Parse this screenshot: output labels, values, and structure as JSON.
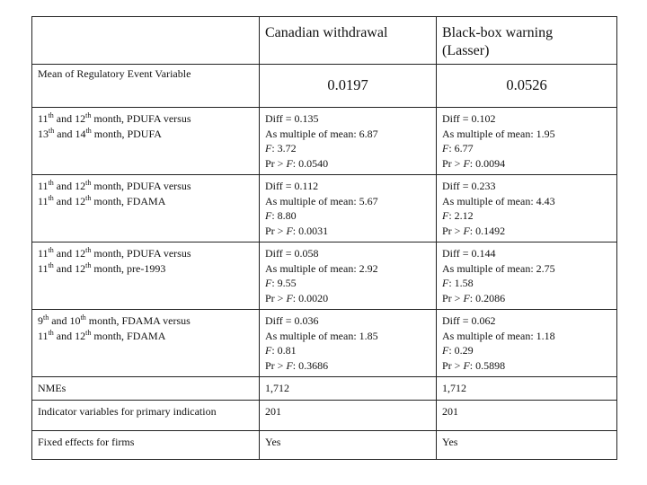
{
  "header": {
    "col1": "",
    "col2": "Canadian withdrawal",
    "col3_line1": "Black-box warning",
    "col3_line2": "(Lasser)"
  },
  "mean_row": {
    "label": "Mean of Regulatory Event Variable",
    "col2": "0.0197",
    "col3": "0.0526"
  },
  "comparison_rows": [
    {
      "label": {
        "a_num": "11",
        "a_sup": "th",
        "a_mid": " and 12",
        "a_sup2": "th",
        "a_rest": " month, PDUFA versus",
        "b_num": "13",
        "b_sup": "th",
        "b_mid": " and 14",
        "b_sup2": "th",
        "b_rest": " month, PDUFA"
      },
      "canadian": {
        "diff": "Diff = 0.135",
        "multiple": "As multiple of mean: 6.87",
        "f_label": "F",
        "f": ": 3.72",
        "pr_pre": "Pr > ",
        "pr_f": "F",
        "pr": ": 0.0540"
      },
      "blackbox": {
        "diff": "Diff = 0.102",
        "multiple": "As multiple of mean: 1.95",
        "f_label": "F",
        "f": ": 6.77",
        "pr_pre": "Pr > ",
        "pr_f": "F",
        "pr": ": 0.0094"
      }
    },
    {
      "label": {
        "a_num": "11",
        "a_sup": "th",
        "a_mid": " and 12",
        "a_sup2": "th",
        "a_rest": " month, PDUFA versus",
        "b_num": "11",
        "b_sup": "th",
        "b_mid": " and 12",
        "b_sup2": "th",
        "b_rest": " month, FDAMA"
      },
      "canadian": {
        "diff": "Diff = 0.112",
        "multiple": "As multiple of mean: 5.67",
        "f_label": "F",
        "f": ": 8.80",
        "pr_pre": "Pr > ",
        "pr_f": "F",
        "pr": ": 0.0031"
      },
      "blackbox": {
        "diff": "Diff = 0.233",
        "multiple": "As multiple of mean: 4.43",
        "f_label": "F",
        "f": ": 2.12",
        "pr_pre": "Pr > ",
        "pr_f": "F",
        "pr": ": 0.1492"
      }
    },
    {
      "label": {
        "a_num": "11",
        "a_sup": "th",
        "a_mid": " and 12",
        "a_sup2": "th",
        "a_rest": " month, PDUFA versus",
        "b_num": "11",
        "b_sup": "th",
        "b_mid": " and 12",
        "b_sup2": "th",
        "b_rest": " month, pre-1993"
      },
      "canadian": {
        "diff": "Diff = 0.058",
        "multiple": "As multiple of mean: 2.92",
        "f_label": "F",
        "f": ": 9.55",
        "pr_pre": "Pr > ",
        "pr_f": "F",
        "pr": ": 0.0020"
      },
      "blackbox": {
        "diff": "Diff = 0.144",
        "multiple": "As multiple of mean: 2.75",
        "f_label": "F",
        "f": ": 1.58",
        "pr_pre": "Pr > ",
        "pr_f": "F",
        "pr": ": 0.2086"
      }
    },
    {
      "label": {
        "a_num": "9",
        "a_sup": "th",
        "a_mid": " and 10",
        "a_sup2": "th",
        "a_rest": " month, FDAMA versus",
        "b_num": "11",
        "b_sup": "th",
        "b_mid": " and 12",
        "b_sup2": "th",
        "b_rest": " month, FDAMA"
      },
      "canadian": {
        "diff": "Diff = 0.036",
        "multiple": "As multiple of mean: 1.85",
        "f_label": "F",
        "f": ": 0.81",
        "pr_pre": "Pr > ",
        "pr_f": "F",
        "pr": ": 0.3686"
      },
      "blackbox": {
        "diff": "Diff = 0.062",
        "multiple": "As multiple of mean: 1.18",
        "f_label": "F",
        "f": ": 0.29",
        "pr_pre": "Pr > ",
        "pr_f": "F",
        "pr": ": 0.5898"
      }
    }
  ],
  "footer_rows": [
    {
      "label": "NMEs",
      "col2": "1,712",
      "col3": "1,712"
    },
    {
      "label": "Indicator variables for primary indication",
      "col2": "201",
      "col3": "201"
    },
    {
      "label": "Fixed effects for firms",
      "col2": "Yes",
      "col3": "Yes"
    }
  ]
}
